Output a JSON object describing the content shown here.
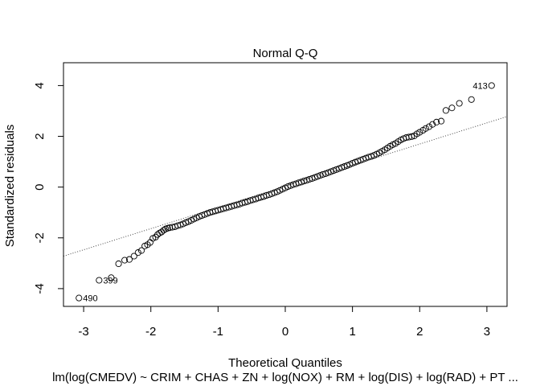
{
  "chart_data": {
    "type": "scatter",
    "title": "Normal Q-Q",
    "xlabel": "Theoretical Quantiles",
    "ylabel": "Standardized residuals",
    "caption": "lm(log(CMEDV) ~ CRIM + CHAS + ZN + log(NOX) + RM + log(DIS) + log(RAD) + PT ...",
    "xlim": [
      -3.3,
      3.3
    ],
    "ylim": [
      -4.7,
      4.9
    ],
    "xticks": [
      -3,
      -2,
      -1,
      0,
      1,
      2,
      3
    ],
    "yticks": [
      -4,
      -2,
      0,
      2,
      4
    ],
    "grid": false,
    "reference_line": {
      "x": [
        -3.3,
        3.3
      ],
      "y": [
        -2.72,
        2.78
      ],
      "style": "dotted"
    },
    "labeled_points": [
      {
        "label": "490",
        "x": -3.07,
        "y": -4.37
      },
      {
        "label": "399",
        "x": -2.77,
        "y": -3.67
      },
      {
        "label": "413",
        "x": 3.07,
        "y": 4.0
      }
    ],
    "points": [
      [
        -3.07,
        -4.37
      ],
      [
        -2.77,
        -3.67
      ],
      [
        -2.59,
        -3.57
      ],
      [
        -2.48,
        -3.02
      ],
      [
        -2.39,
        -2.88
      ],
      [
        -2.32,
        -2.85
      ],
      [
        -2.25,
        -2.72
      ],
      [
        -2.19,
        -2.58
      ],
      [
        -2.14,
        -2.5
      ],
      [
        -2.09,
        -2.32
      ],
      [
        -2.05,
        -2.27
      ],
      [
        -2.01,
        -2.18
      ],
      [
        -1.97,
        -2.02
      ],
      [
        -1.93,
        -1.97
      ],
      [
        -1.9,
        -1.87
      ],
      [
        -1.87,
        -1.81
      ],
      [
        -1.84,
        -1.77
      ],
      [
        -1.81,
        -1.7
      ],
      [
        -1.78,
        -1.65
      ],
      [
        -1.75,
        -1.62
      ],
      [
        -1.72,
        -1.6
      ],
      [
        -1.68,
        -1.58
      ],
      [
        -1.64,
        -1.56
      ],
      [
        -1.6,
        -1.52
      ],
      [
        -1.56,
        -1.49
      ],
      [
        -1.52,
        -1.45
      ],
      [
        -1.48,
        -1.4
      ],
      [
        -1.44,
        -1.36
      ],
      [
        -1.4,
        -1.31
      ],
      [
        -1.36,
        -1.26
      ],
      [
        -1.32,
        -1.21
      ],
      [
        -1.28,
        -1.16
      ],
      [
        -1.24,
        -1.12
      ],
      [
        -1.2,
        -1.08
      ],
      [
        -1.16,
        -1.04
      ],
      [
        -1.12,
        -1.0
      ],
      [
        -1.08,
        -0.97
      ],
      [
        -1.04,
        -0.94
      ],
      [
        -1.0,
        -0.91
      ],
      [
        -0.96,
        -0.88
      ],
      [
        -0.92,
        -0.85
      ],
      [
        -0.88,
        -0.82
      ],
      [
        -0.84,
        -0.79
      ],
      [
        -0.8,
        -0.76
      ],
      [
        -0.76,
        -0.73
      ],
      [
        -0.72,
        -0.7
      ],
      [
        -0.68,
        -0.67
      ],
      [
        -0.64,
        -0.63
      ],
      [
        -0.6,
        -0.6
      ],
      [
        -0.56,
        -0.57
      ],
      [
        -0.52,
        -0.53
      ],
      [
        -0.48,
        -0.5
      ],
      [
        -0.44,
        -0.47
      ],
      [
        -0.4,
        -0.43
      ],
      [
        -0.36,
        -0.4
      ],
      [
        -0.32,
        -0.37
      ],
      [
        -0.28,
        -0.33
      ],
      [
        -0.24,
        -0.3
      ],
      [
        -0.2,
        -0.26
      ],
      [
        -0.16,
        -0.22
      ],
      [
        -0.12,
        -0.18
      ],
      [
        -0.08,
        -0.13
      ],
      [
        -0.04,
        -0.08
      ],
      [
        0.0,
        -0.03
      ],
      [
        0.04,
        0.02
      ],
      [
        0.08,
        0.06
      ],
      [
        0.12,
        0.1
      ],
      [
        0.16,
        0.13
      ],
      [
        0.2,
        0.17
      ],
      [
        0.24,
        0.2
      ],
      [
        0.28,
        0.24
      ],
      [
        0.32,
        0.27
      ],
      [
        0.36,
        0.31
      ],
      [
        0.4,
        0.34
      ],
      [
        0.44,
        0.38
      ],
      [
        0.48,
        0.42
      ],
      [
        0.52,
        0.46
      ],
      [
        0.56,
        0.5
      ],
      [
        0.6,
        0.53
      ],
      [
        0.64,
        0.57
      ],
      [
        0.68,
        0.61
      ],
      [
        0.72,
        0.65
      ],
      [
        0.76,
        0.69
      ],
      [
        0.8,
        0.73
      ],
      [
        0.84,
        0.77
      ],
      [
        0.88,
        0.81
      ],
      [
        0.92,
        0.85
      ],
      [
        0.96,
        0.89
      ],
      [
        1.0,
        0.94
      ],
      [
        1.04,
        0.98
      ],
      [
        1.08,
        1.02
      ],
      [
        1.12,
        1.06
      ],
      [
        1.16,
        1.1
      ],
      [
        1.2,
        1.14
      ],
      [
        1.24,
        1.18
      ],
      [
        1.28,
        1.21
      ],
      [
        1.32,
        1.25
      ],
      [
        1.36,
        1.3
      ],
      [
        1.4,
        1.35
      ],
      [
        1.44,
        1.41
      ],
      [
        1.48,
        1.47
      ],
      [
        1.52,
        1.54
      ],
      [
        1.56,
        1.61
      ],
      [
        1.6,
        1.67
      ],
      [
        1.64,
        1.72
      ],
      [
        1.68,
        1.79
      ],
      [
        1.72,
        1.86
      ],
      [
        1.76,
        1.91
      ],
      [
        1.8,
        1.95
      ],
      [
        1.84,
        1.97
      ],
      [
        1.88,
        1.99
      ],
      [
        1.92,
        2.02
      ],
      [
        1.96,
        2.1
      ],
      [
        2.0,
        2.16
      ],
      [
        2.05,
        2.24
      ],
      [
        2.09,
        2.31
      ],
      [
        2.14,
        2.38
      ],
      [
        2.19,
        2.47
      ],
      [
        2.25,
        2.56
      ],
      [
        2.32,
        2.6
      ],
      [
        2.39,
        3.02
      ],
      [
        2.48,
        3.12
      ],
      [
        2.59,
        3.3
      ],
      [
        2.77,
        3.45
      ],
      [
        3.07,
        4.0
      ]
    ]
  }
}
